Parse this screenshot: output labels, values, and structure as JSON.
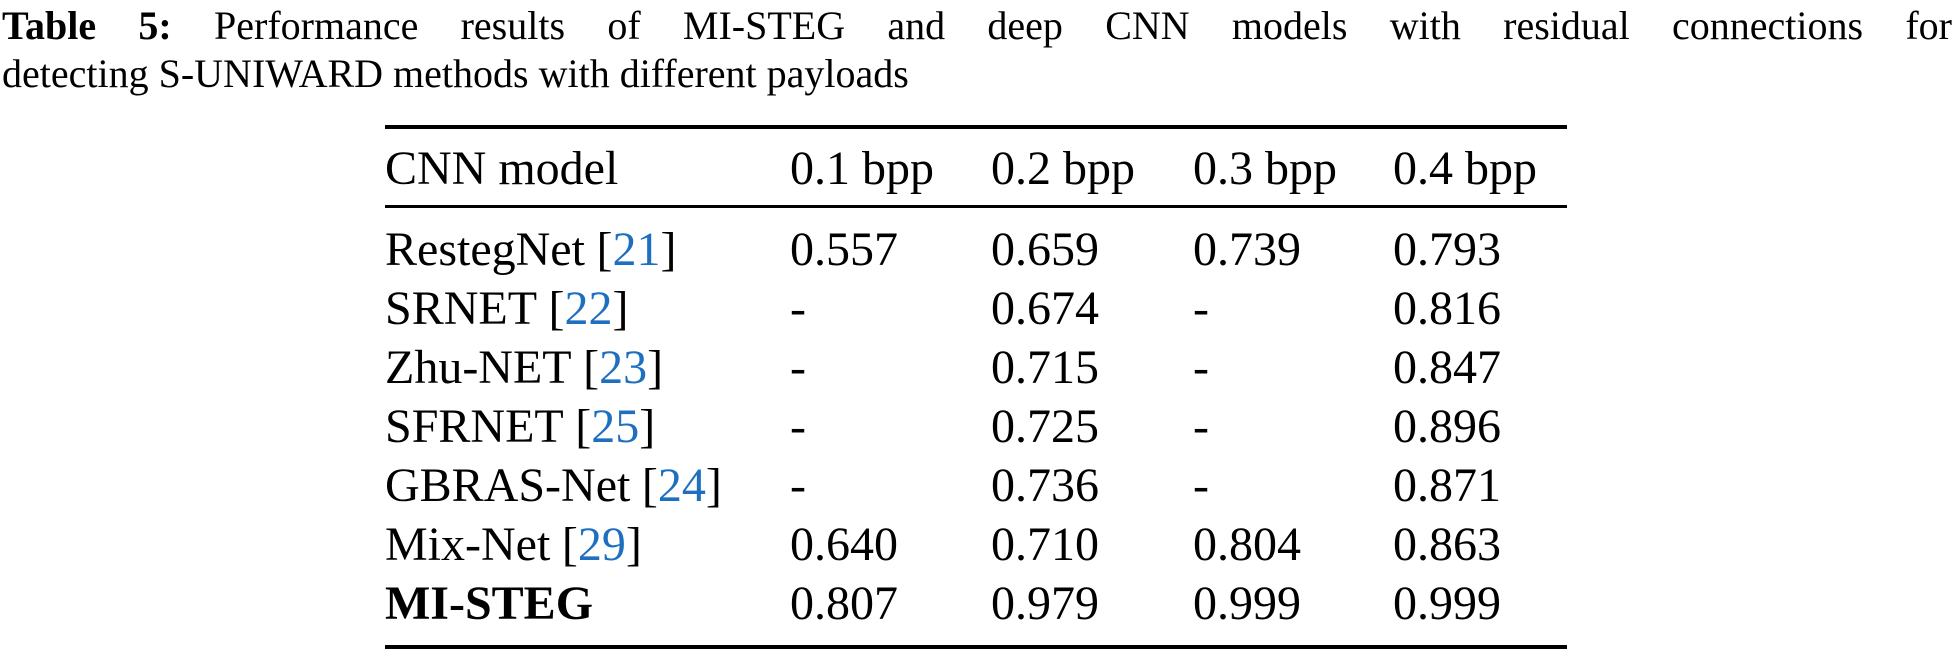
{
  "caption": {
    "label": "Table 5:",
    "line1_rest": "Performance results of MI-STEG and deep CNN models with residual connections for",
    "line2": "detecting S-UNIWARD methods with different payloads"
  },
  "colors": {
    "text": "#000000",
    "citation_blue": "#1f6fc0",
    "background": "#ffffff"
  },
  "table": {
    "columns": [
      "CNN model",
      "0.1 bpp",
      "0.2 bpp",
      "0.3 bpp",
      "0.4 bpp"
    ],
    "rows": [
      {
        "model": "RestegNet",
        "cite_open": "[",
        "cite": "21",
        "cite_close": "]",
        "v1": "0.557",
        "v2": "0.659",
        "v3": "0.739",
        "v4": "0.793"
      },
      {
        "model": "SRNET",
        "cite_open": "[",
        "cite": "22",
        "cite_close": "]",
        "v1": "-",
        "v2": "0.674",
        "v3": "-",
        "v4": "0.816"
      },
      {
        "model": "Zhu-NET",
        "cite_open": "[",
        "cite": "23",
        "cite_close": "]",
        "v1": "-",
        "v2": "0.715",
        "v3": "-",
        "v4": "0.847"
      },
      {
        "model": "SFRNET",
        "cite_open": "[",
        "cite": "25",
        "cite_close": "]",
        "v1": "-",
        "v2": "0.725",
        "v3": "-",
        "v4": "0.896"
      },
      {
        "model": "GBRAS-Net",
        "cite_open": "[",
        "cite": "24",
        "cite_close": "]",
        "v1": "-",
        "v2": "0.736",
        "v3": "-",
        "v4": "0.871"
      },
      {
        "model": "Mix-Net",
        "cite_open": "[",
        "cite": "29",
        "cite_close": "]",
        "v1": "0.640",
        "v2": "0.710",
        "v3": "0.804",
        "v4": "0.863"
      },
      {
        "model": "MI-STEG",
        "v1": "0.807",
        "v2": "0.979",
        "v3": "0.999",
        "v4": "0.999"
      }
    ]
  }
}
